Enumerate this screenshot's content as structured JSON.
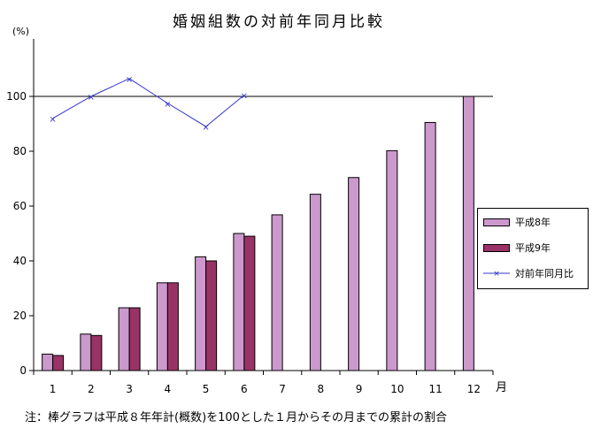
{
  "chart_data": {
    "type": "bar",
    "title": "婚姻組数の対前年同月比較",
    "ylabel": "(%)",
    "xlabel": "月",
    "ylim": [
      0,
      120
    ],
    "yticks": [
      0,
      20,
      40,
      60,
      80,
      100
    ],
    "categories": [
      "1",
      "2",
      "3",
      "4",
      "5",
      "6",
      "7",
      "8",
      "9",
      "10",
      "11",
      "12"
    ],
    "reference_line": 100,
    "series": [
      {
        "name": "平成8年",
        "kind": "bar",
        "color": "#cc99cc",
        "values": [
          6,
          13.3,
          22.9,
          32,
          41.5,
          50,
          56.8,
          64.3,
          70.4,
          80.2,
          90.5,
          100
        ]
      },
      {
        "name": "平成9年",
        "kind": "bar",
        "color": "#993366",
        "values": [
          5.5,
          12.8,
          22.9,
          32,
          40,
          49,
          null,
          null,
          null,
          null,
          null,
          null
        ]
      },
      {
        "name": "対前年同月比",
        "kind": "line",
        "color": "#3333cc",
        "values": [
          92,
          100,
          106.5,
          97.5,
          89,
          100.5,
          null,
          null,
          null,
          null,
          null,
          null
        ]
      }
    ],
    "legend": "right"
  },
  "note": "注：棒グラフは平成８年年計(概数)を100とした１月からその月までの累計の割合"
}
